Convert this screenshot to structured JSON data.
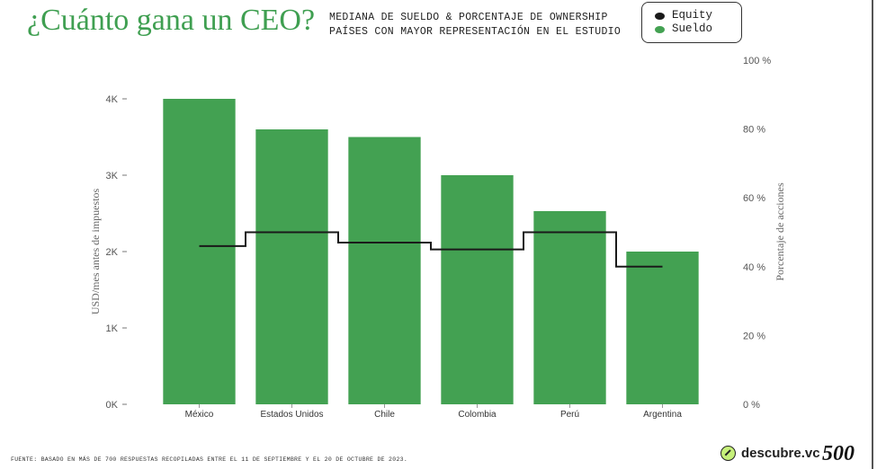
{
  "title": "¿Cuánto gana un CEO?",
  "subtitle": {
    "line1": "MEDIANA DE SUELDO & PORCENTAJE DE OWNERSHIP",
    "line2": "PAÍSES CON MAYOR REPRESENTACIÓN EN EL ESTUDIO"
  },
  "legend": {
    "equity_label": "Equity",
    "sueldo_label": "Sueldo"
  },
  "footer": {
    "source": "FUENTE: BASADO EN MÁS DE 700 RESPUESTAS RECOPILADAS ENTRE EL 11 DE SEPTIEMBRE Y EL 20 DE OCTUBRE DE 2023."
  },
  "brand": {
    "name": "descubre.vc",
    "partner": "500"
  },
  "colors": {
    "bar": "#43a152",
    "line": "#1a1a1a",
    "title": "#3f9f51"
  },
  "chart_data": {
    "type": "bar",
    "categories": [
      "México",
      "Estados Unidos",
      "Chile",
      "Colombia",
      "Perú",
      "Argentina"
    ],
    "series": [
      {
        "name": "Sueldo",
        "type": "bar",
        "axis": "left",
        "values": [
          4000,
          3600,
          3500,
          3000,
          2530,
          2000
        ]
      },
      {
        "name": "Equity",
        "type": "line",
        "axis": "right",
        "values": [
          46,
          50,
          47,
          45,
          50,
          40
        ]
      }
    ],
    "ylabel": "USD/mes antes de impuestos",
    "y2label": "Porcentaje de acciones",
    "ylim": [
      0,
      4000
    ],
    "y2lim": [
      0,
      100
    ],
    "yticks": [
      "0K",
      "1K",
      "2K",
      "3K",
      "4K"
    ],
    "y2ticks": [
      "0 %",
      "20 %",
      "40 %",
      "60 %",
      "80 %",
      "100 %"
    ],
    "grid": false,
    "legend_position": "top-right"
  }
}
